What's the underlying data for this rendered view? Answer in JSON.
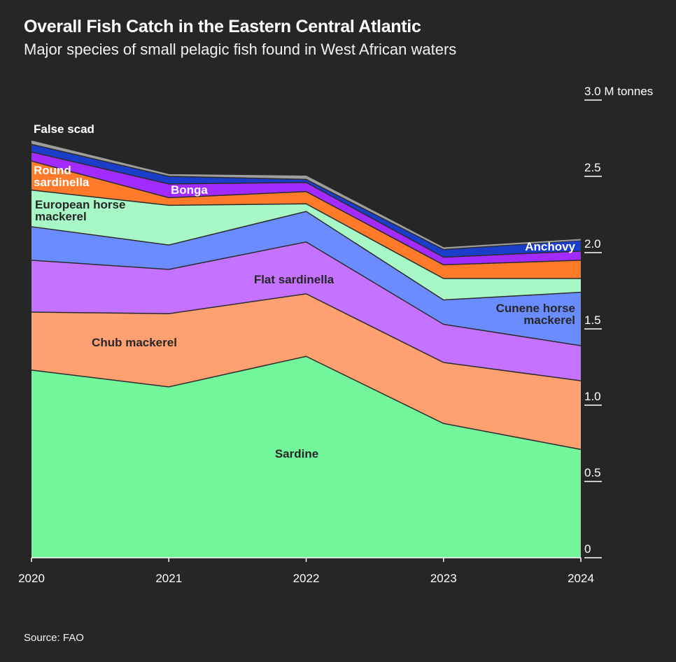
{
  "title": "Overall Fish Catch in the Eastern Central Atlantic",
  "subtitle": "Major species of small pelagic fish found in West African waters",
  "source": "Source: FAO",
  "chart_data": {
    "type": "area",
    "stacked": true,
    "title": "Overall Fish Catch in the Eastern Central Atlantic",
    "subtitle": "Major species of small pelagic fish found in West African waters",
    "x": [
      "2020",
      "2021",
      "2022",
      "2023",
      "2024"
    ],
    "ylabel": "M tonnes",
    "ylim": [
      0,
      3.0
    ],
    "y_ticks": [
      {
        "value": 0,
        "label": "0"
      },
      {
        "value": 0.5,
        "label": "0.5"
      },
      {
        "value": 1.0,
        "label": "1.0"
      },
      {
        "value": 1.5,
        "label": "1.5"
      },
      {
        "value": 2.0,
        "label": "2.0"
      },
      {
        "value": 2.5,
        "label": "2.5"
      },
      {
        "value": 3.0,
        "label": "3.0 M tonnes"
      }
    ],
    "y_axis_side": "right",
    "grid": false,
    "legend": "inline labels",
    "series": [
      {
        "name": "Sardine",
        "color": "#72f59b",
        "label_color": "#262626",
        "values": [
          1.23,
          1.12,
          1.32,
          0.88,
          0.71
        ]
      },
      {
        "name": "Chub mackerel",
        "color": "#ffa071",
        "label_color": "#262626",
        "values": [
          0.38,
          0.48,
          0.41,
          0.4,
          0.45
        ]
      },
      {
        "name": "Flat sardinella",
        "color": "#c472ff",
        "label_color": "#262626",
        "values": [
          0.34,
          0.29,
          0.34,
          0.25,
          0.23
        ]
      },
      {
        "name": "Cunene horse mackerel",
        "color": "#6b8cff",
        "label_color": "#262626",
        "values": [
          0.22,
          0.16,
          0.2,
          0.16,
          0.35
        ]
      },
      {
        "name": "European horse mackerel",
        "color": "#a8f7c6",
        "label_color": "#262626",
        "values": [
          0.24,
          0.26,
          0.05,
          0.14,
          0.09
        ]
      },
      {
        "name": "Round sardinella",
        "color": "#ff7a29",
        "label_color": "#ffffff",
        "values": [
          0.19,
          0.05,
          0.08,
          0.09,
          0.12
        ]
      },
      {
        "name": "Bonga",
        "color": "#a32bff",
        "label_color": "#ffffff",
        "values": [
          0.06,
          0.09,
          0.06,
          0.05,
          0.06
        ]
      },
      {
        "name": "Anchovy",
        "color": "#1a3ec9",
        "label_color": "#ffffff",
        "values": [
          0.05,
          0.05,
          0.02,
          0.05,
          0.07
        ]
      },
      {
        "name": "False scad",
        "color": "#9e9e9e",
        "label_color": "#ffffff",
        "values": [
          0.02,
          0.01,
          0.02,
          0.01,
          0.005
        ]
      }
    ]
  }
}
